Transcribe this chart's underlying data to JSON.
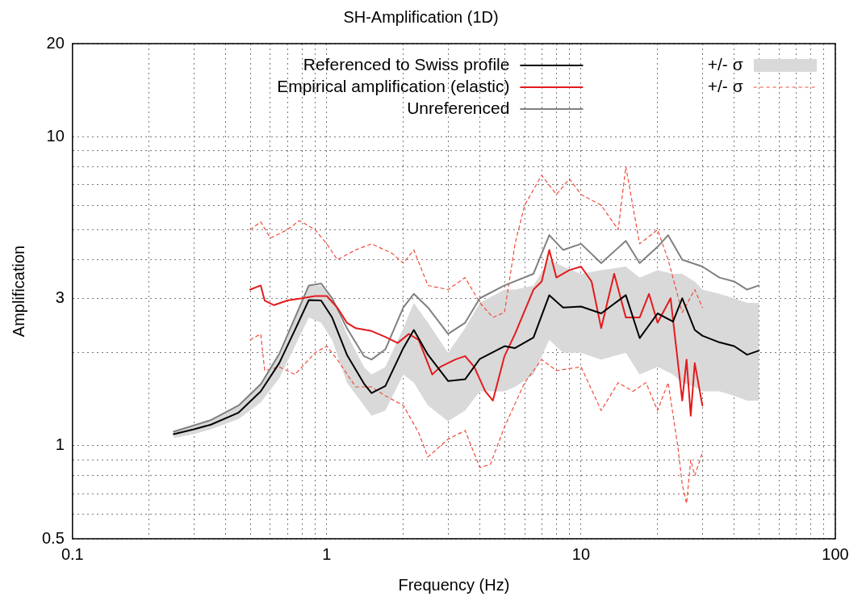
{
  "chart_data": {
    "type": "line",
    "title": "SH-Amplification (1D)",
    "xlabel": "Frequency (Hz)",
    "ylabel": "Amplification",
    "log": "xy",
    "grid": true,
    "legend": "top right",
    "marker": "none",
    "annotations": [
      "+/- σ"
    ],
    "xlim": [
      0.1,
      100
    ],
    "ylim": [
      0.5,
      20
    ],
    "xticks": [
      0.1,
      {
        "value": 0.2,
        "label": null
      },
      {
        "value": 0.3,
        "label": null
      },
      {
        "value": 0.4,
        "label": null
      },
      {
        "value": 0.5,
        "label": null
      },
      {
        "value": 0.6,
        "label": null
      },
      {
        "value": 0.7,
        "label": null
      },
      {
        "value": 0.8,
        "label": null
      },
      {
        "value": 0.9,
        "label": null
      },
      1,
      {
        "value": 2,
        "label": null
      },
      {
        "value": 3,
        "label": null
      },
      {
        "value": 4,
        "label": null
      },
      {
        "value": 5,
        "label": null
      },
      {
        "value": 6,
        "label": null
      },
      {
        "value": 7,
        "label": null
      },
      {
        "value": 8,
        "label": null
      },
      {
        "value": 9,
        "label": null
      },
      10,
      {
        "value": 20,
        "label": null
      },
      {
        "value": 30,
        "label": null
      },
      {
        "value": 40,
        "label": null
      },
      {
        "value": 50,
        "label": null
      },
      {
        "value": 60,
        "label": null
      },
      {
        "value": 70,
        "label": null
      },
      {
        "value": 80,
        "label": null
      },
      {
        "value": 90,
        "label": null
      },
      100
    ],
    "yticks": [
      0.5,
      {
        "value": 0.6,
        "label": null
      },
      {
        "value": 0.7,
        "label": null
      },
      {
        "value": 0.8,
        "label": null
      },
      {
        "value": 0.9,
        "label": null
      },
      1,
      {
        "value": 2,
        "label": null
      },
      3,
      {
        "value": 4,
        "label": null
      },
      {
        "value": 5,
        "label": null
      },
      {
        "value": 6,
        "label": null
      },
      {
        "value": 7,
        "label": null
      },
      {
        "value": 8,
        "label": null
      },
      {
        "value": 9,
        "label": null
      },
      10,
      20
    ],
    "series": [
      {
        "name": "Referenced to Swiss profile",
        "color": "#000000",
        "line_style": "solid",
        "x": [
          0.25,
          0.3,
          0.35,
          0.45,
          0.55,
          0.65,
          0.75,
          0.85,
          0.95,
          1.05,
          1.2,
          1.4,
          1.5,
          1.7,
          2.0,
          2.2,
          2.5,
          3.0,
          3.5,
          4.0,
          5.0,
          5.5,
          6.5,
          7.5,
          8.5,
          10,
          12,
          15,
          17,
          20,
          23,
          25,
          28,
          30,
          35,
          40,
          45,
          50
        ],
        "values": [
          1.09,
          1.13,
          1.17,
          1.28,
          1.5,
          1.85,
          2.37,
          2.96,
          2.95,
          2.6,
          1.97,
          1.59,
          1.48,
          1.56,
          2.07,
          2.37,
          1.97,
          1.62,
          1.64,
          1.91,
          2.1,
          2.07,
          2.24,
          3.07,
          2.8,
          2.82,
          2.68,
          3.07,
          2.23,
          2.68,
          2.52,
          3.0,
          2.37,
          2.27,
          2.16,
          2.1,
          1.97,
          2.03
        ],
        "lower": [
          1.06,
          1.09,
          1.13,
          1.22,
          1.38,
          1.65,
          2.1,
          2.6,
          2.5,
          2.2,
          1.6,
          1.35,
          1.25,
          1.3,
          1.7,
          1.6,
          1.35,
          1.2,
          1.3,
          1.5,
          1.5,
          1.55,
          1.7,
          2.2,
          2.0,
          2.0,
          1.9,
          2.0,
          1.7,
          1.8,
          1.7,
          1.6,
          1.55,
          1.5,
          1.5,
          1.45,
          1.4,
          1.4
        ],
        "upper": [
          1.12,
          1.17,
          1.22,
          1.35,
          1.6,
          2.0,
          2.6,
          3.3,
          3.3,
          3.0,
          2.3,
          1.8,
          1.7,
          1.8,
          2.4,
          2.9,
          2.5,
          2.0,
          2.4,
          2.9,
          3.2,
          3.2,
          3.3,
          4.0,
          3.8,
          3.6,
          3.7,
          3.8,
          3.5,
          3.7,
          3.6,
          3.6,
          3.4,
          3.2,
          3.1,
          3.0,
          2.9,
          2.9
        ]
      },
      {
        "name": "Empirical amplification (elastic)",
        "color": "#e41a1c",
        "line_style": "solid",
        "x": [
          0.5,
          0.55,
          0.57,
          0.62,
          0.7,
          0.8,
          0.9,
          1.0,
          1.1,
          1.2,
          1.3,
          1.5,
          1.7,
          1.9,
          2.1,
          2.3,
          2.6,
          2.8,
          3.2,
          3.5,
          3.8,
          4.2,
          4.5,
          5.0,
          5.5,
          6.5,
          7.0,
          7.5,
          8.0,
          9,
          10,
          11,
          12,
          13.5,
          15,
          17,
          18.5,
          20,
          22.5,
          25,
          26,
          27,
          28,
          30
        ],
        "values": [
          3.2,
          3.3,
          2.95,
          2.85,
          2.95,
          3.0,
          3.05,
          3.05,
          2.8,
          2.5,
          2.4,
          2.35,
          2.25,
          2.15,
          2.3,
          2.2,
          1.7,
          1.8,
          1.9,
          1.95,
          1.8,
          1.5,
          1.4,
          1.95,
          2.3,
          3.2,
          3.4,
          4.3,
          3.5,
          3.7,
          3.8,
          3.4,
          2.4,
          3.6,
          2.6,
          2.6,
          3.1,
          2.5,
          3.0,
          1.4,
          1.9,
          1.25,
          1.85,
          1.35
        ]
      },
      {
        "name": "Unreferenced",
        "color": "#808080",
        "line_style": "solid",
        "x": [
          0.25,
          0.35,
          0.45,
          0.55,
          0.65,
          0.75,
          0.85,
          0.95,
          1.05,
          1.2,
          1.4,
          1.5,
          1.7,
          2.0,
          2.2,
          2.5,
          3.0,
          3.5,
          4.0,
          5.0,
          6.5,
          7.5,
          8.5,
          10,
          12,
          15,
          17,
          20,
          22,
          25,
          30,
          35,
          40,
          45,
          50
        ],
        "values": [
          1.11,
          1.21,
          1.35,
          1.58,
          1.98,
          2.6,
          3.3,
          3.35,
          3.0,
          2.4,
          1.95,
          1.9,
          2.05,
          2.8,
          3.1,
          2.8,
          2.3,
          2.5,
          3.0,
          3.3,
          3.6,
          4.8,
          4.3,
          4.5,
          3.9,
          4.6,
          3.9,
          4.4,
          4.8,
          4.0,
          3.8,
          3.5,
          3.4,
          3.2,
          3.3
        ]
      },
      {
        "name": "+/- σ",
        "color": "#f04a3a",
        "line_style": "dashed",
        "x": [
          0.5,
          0.55,
          0.6,
          0.7,
          0.78,
          0.9,
          1.0,
          1.1,
          1.3,
          1.5,
          1.8,
          2.0,
          2.2,
          2.5,
          3.0,
          3.5,
          4.0,
          4.5,
          5.0,
          5.5,
          6.0,
          7.0,
          8,
          9,
          10,
          12,
          14,
          15,
          17,
          20,
          22,
          25,
          28,
          30
        ],
        "values": [
          5.0,
          5.3,
          4.7,
          5.0,
          5.35,
          5.0,
          4.5,
          4.0,
          4.3,
          4.5,
          4.2,
          3.9,
          4.3,
          3.3,
          3.2,
          3.5,
          2.9,
          2.6,
          2.7,
          4.5,
          6.0,
          7.5,
          6.5,
          7.3,
          6.5,
          6.0,
          5.0,
          8.0,
          4.5,
          5.0,
          4.0,
          2.7,
          3.2,
          2.8
        ]
      },
      {
        "color": "#f04a3a",
        "line_style": "dashed",
        "x": [
          0.5,
          0.55,
          0.57,
          0.65,
          0.75,
          0.9,
          1.0,
          1.1,
          1.3,
          1.5,
          1.7,
          2.0,
          2.3,
          2.5,
          3.0,
          3.5,
          4.0,
          4.4,
          5.0,
          6.0,
          7.0,
          8.0,
          10,
          12,
          14,
          16,
          18,
          20,
          22,
          24,
          25,
          26,
          27,
          28,
          30
        ],
        "values": [
          2.2,
          2.3,
          1.75,
          1.8,
          1.7,
          2.0,
          2.1,
          1.9,
          1.55,
          1.55,
          1.45,
          1.35,
          1.1,
          0.92,
          1.05,
          1.12,
          0.85,
          0.87,
          1.15,
          1.6,
          1.9,
          1.75,
          1.8,
          1.3,
          1.6,
          1.5,
          1.6,
          1.3,
          1.6,
          1.0,
          0.75,
          0.65,
          0.9,
          0.8,
          0.95
        ]
      }
    ]
  }
}
